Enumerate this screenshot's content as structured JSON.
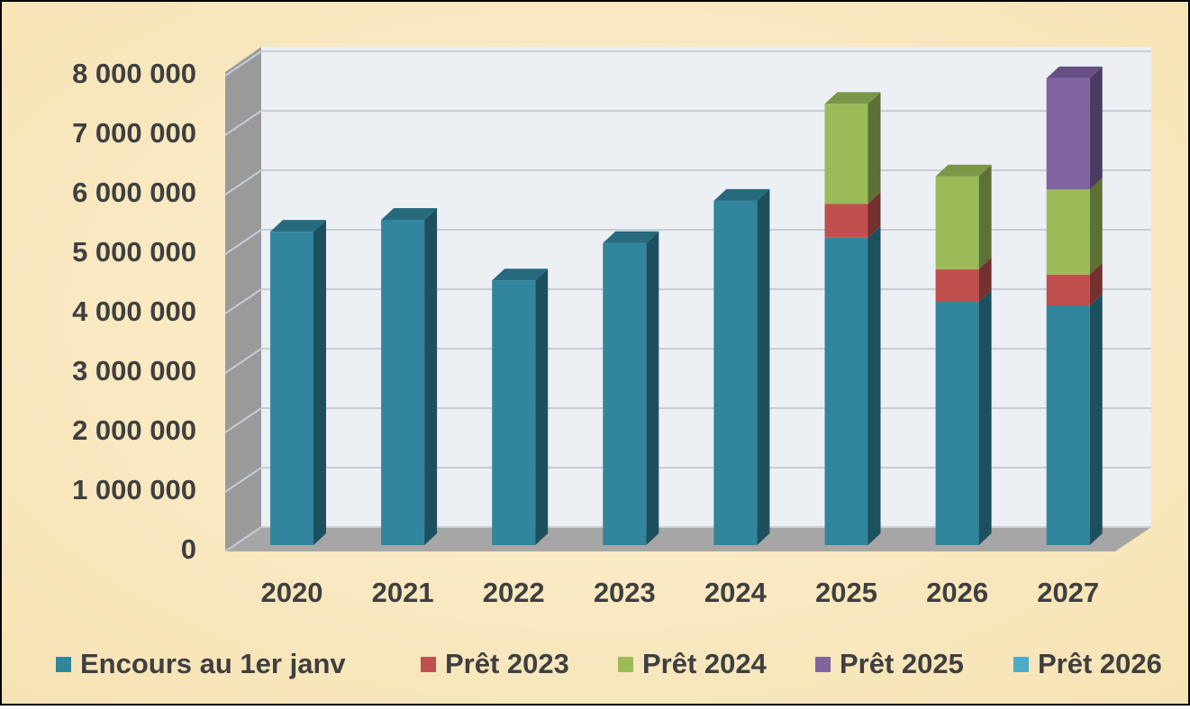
{
  "chart_data": {
    "type": "bar",
    "stacked": true,
    "three_d": true,
    "categories": [
      "2020",
      "2021",
      "2022",
      "2023",
      "2024",
      "2025",
      "2026",
      "2027"
    ],
    "series": [
      {
        "name": "Encours au 1er janv",
        "color": "#31859c",
        "values": [
          5270000,
          5470000,
          4450000,
          5080000,
          5790000,
          5170000,
          4090000,
          4030000
        ]
      },
      {
        "name": "Prêt 2023",
        "color": "#c0504d",
        "values": [
          null,
          null,
          null,
          null,
          null,
          570000,
          550000,
          520000
        ]
      },
      {
        "name": "Prêt 2024",
        "color": "#9bbb59",
        "values": [
          null,
          null,
          null,
          null,
          null,
          1680000,
          1560000,
          1430000
        ]
      },
      {
        "name": "Prêt 2025",
        "color": "#8064a2",
        "values": [
          null,
          null,
          null,
          null,
          null,
          null,
          null,
          1870000
        ]
      },
      {
        "name": "Prêt 2026",
        "color": "#4bacc6",
        "values": [
          null,
          null,
          null,
          null,
          null,
          null,
          null,
          null
        ]
      }
    ],
    "ylim": [
      0,
      8000000
    ],
    "yticks": [
      {
        "value": 0,
        "label": "0"
      },
      {
        "value": 1000000,
        "label": "1 000 000"
      },
      {
        "value": 2000000,
        "label": "2 000 000"
      },
      {
        "value": 3000000,
        "label": "3 000 000"
      },
      {
        "value": 4000000,
        "label": "4 000 000"
      },
      {
        "value": 5000000,
        "label": "5 000 000"
      },
      {
        "value": 6000000,
        "label": "6 000 000"
      },
      {
        "value": 7000000,
        "label": "7 000 000"
      },
      {
        "value": 8000000,
        "label": "8 000 000"
      }
    ],
    "grid": true,
    "legend": "bottom"
  }
}
